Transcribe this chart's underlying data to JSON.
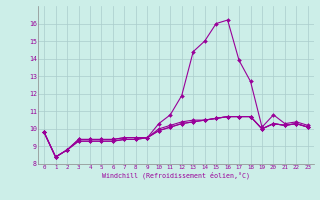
{
  "xlabel": "Windchill (Refroidissement éolien,°C)",
  "bg_color": "#cceee8",
  "grid_color": "#aacccc",
  "line_color": "#990099",
  "x": [
    0,
    1,
    2,
    3,
    4,
    5,
    6,
    7,
    8,
    9,
    10,
    11,
    12,
    13,
    14,
    15,
    16,
    17,
    18,
    19,
    20,
    21,
    22,
    23
  ],
  "series1": [
    9.8,
    8.4,
    8.8,
    9.4,
    9.4,
    9.4,
    9.4,
    9.5,
    9.5,
    9.5,
    10.3,
    10.8,
    11.9,
    14.4,
    15.0,
    16.0,
    16.2,
    13.9,
    12.7,
    10.1,
    10.8,
    10.3,
    10.4,
    10.2
  ],
  "series2": [
    9.8,
    8.4,
    8.8,
    9.3,
    9.3,
    9.3,
    9.3,
    9.4,
    9.4,
    9.5,
    9.9,
    10.1,
    10.3,
    10.4,
    10.5,
    10.6,
    10.7,
    10.7,
    10.7,
    10.0,
    10.3,
    10.2,
    10.3,
    10.1
  ],
  "series3": [
    9.8,
    8.4,
    8.8,
    9.3,
    9.3,
    9.3,
    9.3,
    9.4,
    9.4,
    9.5,
    9.9,
    10.1,
    10.3,
    10.4,
    10.5,
    10.6,
    10.7,
    10.7,
    10.7,
    10.0,
    10.3,
    10.2,
    10.3,
    10.1
  ],
  "series4": [
    9.8,
    8.4,
    8.8,
    9.4,
    9.4,
    9.4,
    9.4,
    9.5,
    9.5,
    9.5,
    10.0,
    10.2,
    10.4,
    10.5,
    10.5,
    10.6,
    10.7,
    10.7,
    10.7,
    10.0,
    10.3,
    10.2,
    10.3,
    10.1
  ],
  "ylim": [
    8,
    17
  ],
  "xlim": [
    -0.5,
    23.5
  ],
  "yticks": [
    8,
    9,
    10,
    11,
    12,
    13,
    14,
    15,
    16
  ],
  "xticks": [
    0,
    1,
    2,
    3,
    4,
    5,
    6,
    7,
    8,
    9,
    10,
    11,
    12,
    13,
    14,
    15,
    16,
    17,
    18,
    19,
    20,
    21,
    22,
    23
  ]
}
